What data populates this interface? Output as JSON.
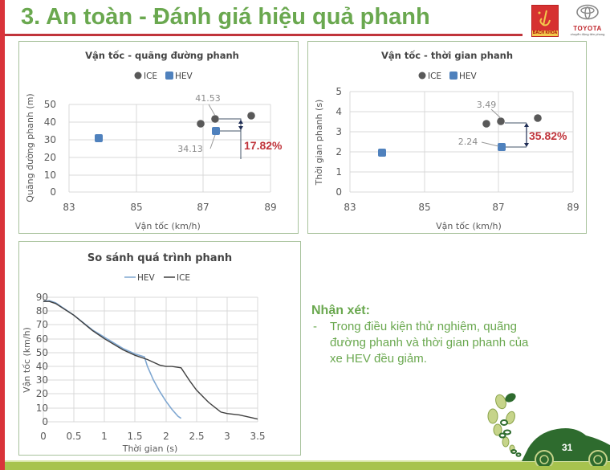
{
  "slide": {
    "title": "3. An toàn - Đánh giá hiệu quả phanh",
    "page_number": "31",
    "logos": {
      "left": {
        "name": "Bách Khoa",
        "label": "BÁCH KHOA"
      },
      "right": {
        "name": "Toyota",
        "label": "TOYOTA",
        "tagline": "chuyển động tiên phong"
      }
    },
    "colors": {
      "title": "#6aa84f",
      "accent_red": "#c0343b",
      "ice": "#595959",
      "hev": "#4f81bd",
      "annotation": "#c0343b",
      "ground": "#a7c34e",
      "car": "#2e6b2e"
    }
  },
  "notes": {
    "heading": "Nhận xét:",
    "bullet_marker": "-",
    "lines": [
      "Trong điều kiện thử nghiệm, quãng",
      "đường phanh và thời gian phanh của",
      "xe HEV đều giảm."
    ]
  },
  "chart_data": [
    {
      "type": "scatter",
      "title": "Vận tốc - quãng đường phanh",
      "xlabel": "Vận tốc (km/h)",
      "ylabel": "Quãng đường phanh (m)",
      "xlim": [
        83,
        89
      ],
      "ylim": [
        0,
        50
      ],
      "x_ticks": [
        "83",
        "85",
        "87",
        "89"
      ],
      "y_ticks": [
        "0",
        "10",
        "20",
        "30",
        "40",
        "50"
      ],
      "grid": true,
      "legend_position": "top",
      "series": [
        {
          "name": "ICE",
          "marker": "circle",
          "color": "#595959",
          "points": [
            [
              86.6,
              38.5
            ],
            [
              87.0,
              41.53
            ],
            [
              88.0,
              43.0
            ]
          ]
        },
        {
          "name": "HEV",
          "marker": "square",
          "color": "#4f81bd",
          "points": [
            [
              84.0,
              30.0
            ],
            [
              87.0,
              34.13
            ]
          ]
        }
      ],
      "annotations": [
        {
          "text": "41.53",
          "target": [
            87.0,
            41.53
          ]
        },
        {
          "text": "34.13",
          "target": [
            87.0,
            34.13
          ]
        },
        {
          "text": "17.82%",
          "color": "#c0343b",
          "meaning": "reduction"
        }
      ]
    },
    {
      "type": "scatter",
      "title": "Vận tốc - thời gian phanh",
      "xlabel": "Vận tốc (km/h)",
      "ylabel": "Thời gian phanh (s)",
      "xlim": [
        83,
        89
      ],
      "ylim": [
        0,
        5
      ],
      "x_ticks": [
        "83",
        "85",
        "87",
        "89"
      ],
      "y_ticks": [
        "0",
        "1",
        "2",
        "3",
        "4",
        "5"
      ],
      "grid": true,
      "legend_position": "top",
      "series": [
        {
          "name": "ICE",
          "marker": "circle",
          "color": "#595959",
          "points": [
            [
              86.6,
              3.38
            ],
            [
              87.0,
              3.49
            ],
            [
              88.0,
              3.68
            ]
          ]
        },
        {
          "name": "HEV",
          "marker": "square",
          "color": "#4f81bd",
          "points": [
            [
              84.0,
              1.95
            ],
            [
              87.0,
              2.24
            ]
          ]
        }
      ],
      "annotations": [
        {
          "text": "3.49",
          "target": [
            87.0,
            3.49
          ]
        },
        {
          "text": "2.24",
          "target": [
            87.0,
            2.24
          ]
        },
        {
          "text": "35.82%",
          "color": "#c0343b",
          "meaning": "reduction"
        }
      ]
    },
    {
      "type": "line",
      "title": "So sánh quá trình phanh",
      "xlabel": "Thời gian (s)",
      "ylabel": "Vận tốc (km/h)",
      "xlim": [
        0,
        3.5
      ],
      "ylim": [
        0,
        90
      ],
      "x_ticks": [
        "0",
        "0.5",
        "1",
        "1.5",
        "2",
        "2.5",
        "3",
        "3.5"
      ],
      "y_ticks": [
        "0",
        "10",
        "20",
        "30",
        "40",
        "50",
        "60",
        "70",
        "80",
        "90"
      ],
      "grid": true,
      "legend_position": "top",
      "series": [
        {
          "name": "HEV",
          "color": "#7fa7d1",
          "x": [
            0,
            0.1,
            0.2,
            0.5,
            0.8,
            1.0,
            1.3,
            1.5,
            1.65,
            1.7,
            1.8,
            1.9,
            2.0,
            2.1,
            2.2,
            2.25
          ],
          "y": [
            87,
            87.5,
            86,
            77,
            66.5,
            61,
            53,
            49,
            47,
            40,
            30,
            22,
            15,
            9,
            4,
            2.5
          ]
        },
        {
          "name": "ICE",
          "color": "#404040",
          "x": [
            0,
            0.1,
            0.2,
            0.5,
            0.8,
            1.0,
            1.3,
            1.5,
            1.7,
            1.9,
            2.0,
            2.1,
            2.25,
            2.4,
            2.5,
            2.7,
            2.9,
            3.0,
            3.2,
            3.5
          ],
          "y": [
            87,
            87,
            85.5,
            77,
            66,
            60,
            52,
            48,
            45,
            41,
            40,
            40,
            39,
            29,
            23,
            14,
            7,
            6,
            5,
            2
          ]
        }
      ]
    }
  ]
}
